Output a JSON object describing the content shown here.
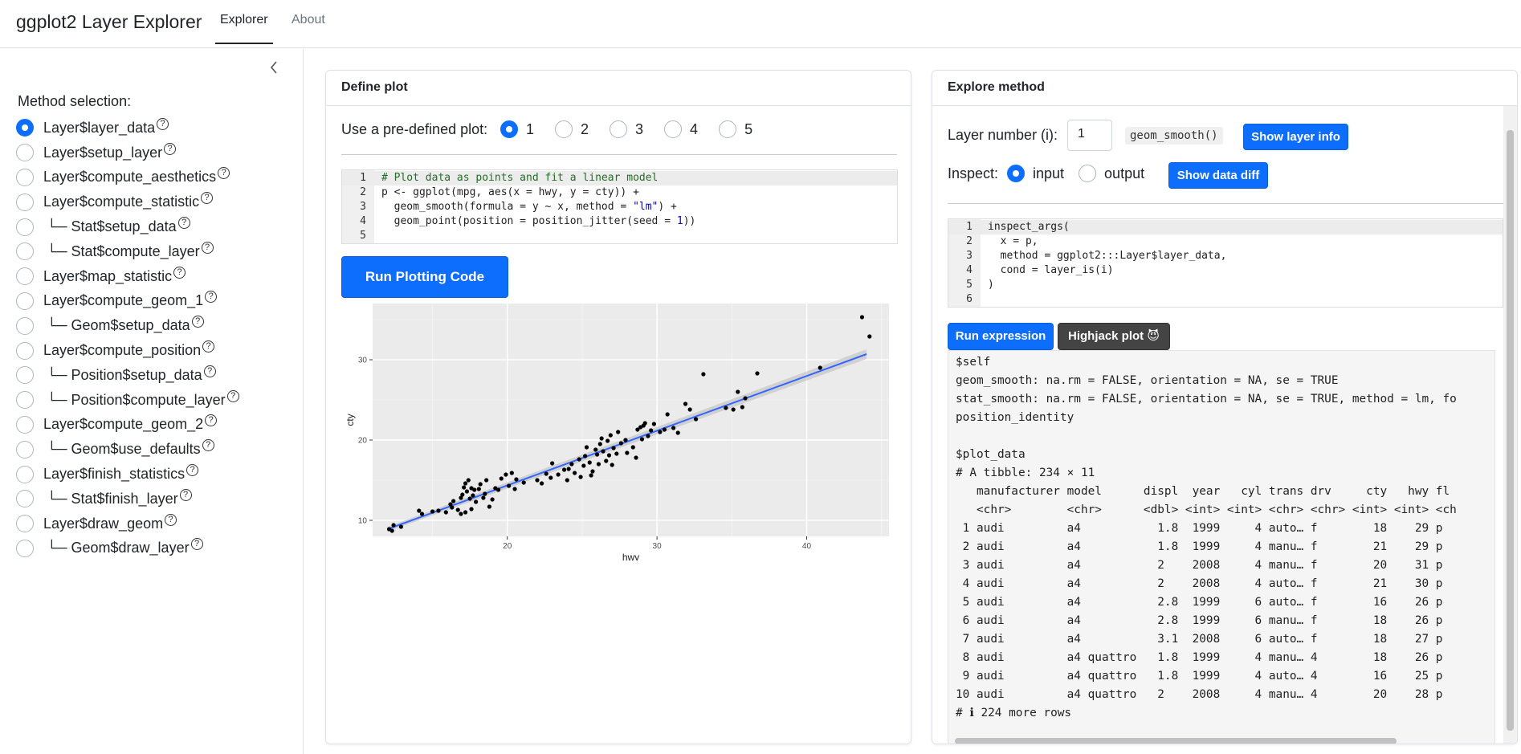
{
  "nav": {
    "brand": "ggplot2 Layer Explorer",
    "tabs": [
      "Explorer",
      "About"
    ]
  },
  "sidebar": {
    "collapse_icon": "chevron-left-icon",
    "heading": "Method selection:",
    "selected_index": 0,
    "methods": [
      "Layer$layer_data",
      "Layer$setup_layer",
      "Layer$compute_aesthetics",
      "Layer$compute_statistic",
      "└─ Stat$setup_data",
      "└─ Stat$compute_layer",
      "Layer$map_statistic",
      "Layer$compute_geom_1",
      "└─ Geom$setup_data",
      "Layer$compute_position",
      "└─ Position$setup_data",
      "└─ Position$compute_layer",
      "Layer$compute_geom_2",
      "└─ Geom$use_defaults",
      "Layer$finish_statistics",
      "└─ Stat$finish_layer",
      "Layer$draw_geom",
      "└─ Geom$draw_layer"
    ],
    "help_glyph": "?"
  },
  "define_plot": {
    "title": "Define plot",
    "predefined_label": "Use a pre-defined plot:",
    "options": [
      "1",
      "2",
      "3",
      "4",
      "5"
    ],
    "selected_option": "1",
    "code_lines": [
      "# Plot data as points and fit a linear model",
      "p <- ggplot(mpg, aes(x = hwy, y = cty)) +",
      "  geom_smooth(formula = y ~ x, method = \"lm\") +",
      "  geom_point(position = position_jitter(seed = 1))",
      ""
    ],
    "run_button": "Run Plotting Code"
  },
  "chart_data": {
    "type": "scatter",
    "title": "",
    "xlabel": "hwy",
    "ylabel": "cty",
    "xlim": [
      11,
      45.5
    ],
    "ylim": [
      8,
      37
    ],
    "x_ticks": [
      20,
      30,
      40
    ],
    "y_ticks": [
      10,
      20,
      30
    ],
    "grid": true,
    "points": [
      [
        12.1,
        8.9
      ],
      [
        12.4,
        9.4
      ],
      [
        12.3,
        8.7
      ],
      [
        12.9,
        9.2
      ],
      [
        14.1,
        11.2
      ],
      [
        14.3,
        10.8
      ],
      [
        15.0,
        11.1
      ],
      [
        15.4,
        11.2
      ],
      [
        15.9,
        11.0
      ],
      [
        16.2,
        12.0
      ],
      [
        16.3,
        11.6
      ],
      [
        16.4,
        12.4
      ],
      [
        16.7,
        11.3
      ],
      [
        16.9,
        12.8
      ],
      [
        17.0,
        13.2
      ],
      [
        17.1,
        14.1
      ],
      [
        17.2,
        14.6
      ],
      [
        17.3,
        13.6
      ],
      [
        17.4,
        15.0
      ],
      [
        17.5,
        12.7
      ],
      [
        17.6,
        14.0
      ],
      [
        17.7,
        13.1
      ],
      [
        17.8,
        13.8
      ],
      [
        17.9,
        12.3
      ],
      [
        17.2,
        11.0
      ],
      [
        16.9,
        10.8
      ],
      [
        17.6,
        11.4
      ],
      [
        18.1,
        13.9
      ],
      [
        18.2,
        14.5
      ],
      [
        18.4,
        12.8
      ],
      [
        18.5,
        13.3
      ],
      [
        18.6,
        15.0
      ],
      [
        18.8,
        11.7
      ],
      [
        19.0,
        12.6
      ],
      [
        19.2,
        14.0
      ],
      [
        19.4,
        13.8
      ],
      [
        19.6,
        15.2
      ],
      [
        19.9,
        15.7
      ],
      [
        20.1,
        14.3
      ],
      [
        20.3,
        15.9
      ],
      [
        20.5,
        13.9
      ],
      [
        20.6,
        15.1
      ],
      [
        21.1,
        14.7
      ],
      [
        22.0,
        15.0
      ],
      [
        22.3,
        14.6
      ],
      [
        22.6,
        15.8
      ],
      [
        22.9,
        15.3
      ],
      [
        23.0,
        17.1
      ],
      [
        23.4,
        15.7
      ],
      [
        23.8,
        16.3
      ],
      [
        24.0,
        15.0
      ],
      [
        24.1,
        16.4
      ],
      [
        24.3,
        17.0
      ],
      [
        24.5,
        15.9
      ],
      [
        24.8,
        17.6
      ],
      [
        24.9,
        15.4
      ],
      [
        25.1,
        16.8
      ],
      [
        25.2,
        18.0
      ],
      [
        25.3,
        19.1
      ],
      [
        25.5,
        17.2
      ],
      [
        25.6,
        15.6
      ],
      [
        25.7,
        16.1
      ],
      [
        25.9,
        18.8
      ],
      [
        26.0,
        18.2
      ],
      [
        26.1,
        17.0
      ],
      [
        26.2,
        19.5
      ],
      [
        26.3,
        20.2
      ],
      [
        26.4,
        18.6
      ],
      [
        26.6,
        17.4
      ],
      [
        26.7,
        19.9
      ],
      [
        26.8,
        18.1
      ],
      [
        26.9,
        20.6
      ],
      [
        27.0,
        16.9
      ],
      [
        27.1,
        19.0
      ],
      [
        27.3,
        18.3
      ],
      [
        27.4,
        21.0
      ],
      [
        27.6,
        19.6
      ],
      [
        27.9,
        20.0
      ],
      [
        28.0,
        18.4
      ],
      [
        28.4,
        19.1
      ],
      [
        28.6,
        17.8
      ],
      [
        28.7,
        21.3
      ],
      [
        28.9,
        21.6
      ],
      [
        29.0,
        20.1
      ],
      [
        29.1,
        21.8
      ],
      [
        29.2,
        22.1
      ],
      [
        29.4,
        20.5
      ],
      [
        29.6,
        21.2
      ],
      [
        29.8,
        22.0
      ],
      [
        30.2,
        21.0
      ],
      [
        30.5,
        21.3
      ],
      [
        30.7,
        23.2
      ],
      [
        31.1,
        21.5
      ],
      [
        31.4,
        20.9
      ],
      [
        31.9,
        24.5
      ],
      [
        32.2,
        23.8
      ],
      [
        32.6,
        22.6
      ],
      [
        33.1,
        28.2
      ],
      [
        34.6,
        24.0
      ],
      [
        35.1,
        23.8
      ],
      [
        35.4,
        26.0
      ],
      [
        35.7,
        24.1
      ],
      [
        35.9,
        25.2
      ],
      [
        36.7,
        28.3
      ],
      [
        40.9,
        29.0
      ],
      [
        43.7,
        35.3
      ],
      [
        44.2,
        32.9
      ]
    ],
    "fit_line": [
      [
        12,
        8.9
      ],
      [
        44,
        30.7
      ]
    ]
  },
  "explore": {
    "title": "Explore method",
    "layer_label": "Layer number (i):",
    "layer_value": "1",
    "layer_geom": "geom_smooth()",
    "show_layer_info": "Show layer info",
    "inspect_label": "Inspect:",
    "inspect_options": [
      "input",
      "output"
    ],
    "inspect_selected": "input",
    "show_data_diff": "Show data diff",
    "code_lines": [
      "inspect_args(",
      "  x = p,",
      "  method = ggplot2:::Layer$layer_data,",
      "  cond = layer_is(i)",
      ")",
      ""
    ],
    "run_expression": "Run expression",
    "highjack_plot": "Highjack plot 😈",
    "output_lines": [
      "$self",
      "geom_smooth: na.rm = FALSE, orientation = NA, se = TRUE",
      "stat_smooth: na.rm = FALSE, orientation = NA, se = TRUE, method = lm, fo",
      "position_identity",
      "",
      "$plot_data",
      "# A tibble: 234 × 11",
      "   manufacturer model      displ  year   cyl trans drv     cty   hwy fl",
      "   <chr>        <chr>      <dbl> <int> <int> <chr> <chr> <int> <int> <ch",
      " 1 audi         a4           1.8  1999     4 auto… f        18    29 p",
      " 2 audi         a4           1.8  1999     4 manu… f        21    29 p",
      " 3 audi         a4           2    2008     4 manu… f        20    31 p",
      " 4 audi         a4           2    2008     4 auto… f        21    30 p",
      " 5 audi         a4           2.8  1999     6 auto… f        16    26 p",
      " 6 audi         a4           2.8  1999     6 manu… f        18    26 p",
      " 7 audi         a4           3.1  2008     6 auto… f        18    27 p",
      " 8 audi         a4 quattro   1.8  1999     4 manu… 4        18    26 p",
      " 9 audi         a4 quattro   1.8  1999     4 auto… 4        16    25 p",
      "10 audi         a4 quattro   2    2008     4 manu… 4        20    28 p",
      "# ℹ 224 more rows"
    ]
  },
  "colors": {
    "accent": "#0d6efd",
    "dark_button": "#444444",
    "plot_panel": "#ebebeb",
    "fit_line": "#3366ff",
    "ribbon": "#c4c4c4"
  }
}
